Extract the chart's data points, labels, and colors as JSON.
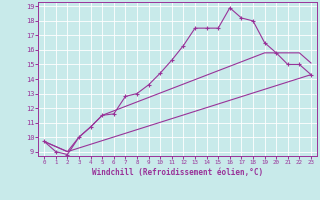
{
  "xlabel": "Windchill (Refroidissement éolien,°C)",
  "bg_color": "#c8eaea",
  "line_color": "#993399",
  "xlim": [
    -0.5,
    23.5
  ],
  "ylim": [
    8.7,
    19.3
  ],
  "xticks": [
    0,
    1,
    2,
    3,
    4,
    5,
    6,
    7,
    8,
    9,
    10,
    11,
    12,
    13,
    14,
    15,
    16,
    17,
    18,
    19,
    20,
    21,
    22,
    23
  ],
  "yticks": [
    9,
    10,
    11,
    12,
    13,
    14,
    15,
    16,
    17,
    18,
    19
  ],
  "line1_x": [
    0,
    1,
    2,
    3,
    4,
    5,
    6,
    7,
    8,
    9,
    10,
    11,
    12,
    13,
    14,
    15,
    16,
    17,
    18,
    19,
    20,
    21,
    22,
    23
  ],
  "line1_y": [
    9.7,
    9.0,
    8.8,
    10.0,
    10.7,
    11.5,
    11.6,
    12.8,
    13.0,
    13.6,
    14.4,
    15.3,
    16.3,
    17.5,
    17.5,
    17.5,
    18.9,
    18.2,
    18.0,
    16.5,
    15.8,
    15.0,
    15.0,
    14.3
  ],
  "line2_x": [
    0,
    2,
    3,
    4,
    5,
    19,
    20,
    21,
    22,
    23
  ],
  "line2_y": [
    9.7,
    9.0,
    10.0,
    10.7,
    11.5,
    15.8,
    15.8,
    15.8,
    15.8,
    15.1
  ],
  "line3_x": [
    0,
    2,
    23
  ],
  "line3_y": [
    9.7,
    9.0,
    14.3
  ]
}
